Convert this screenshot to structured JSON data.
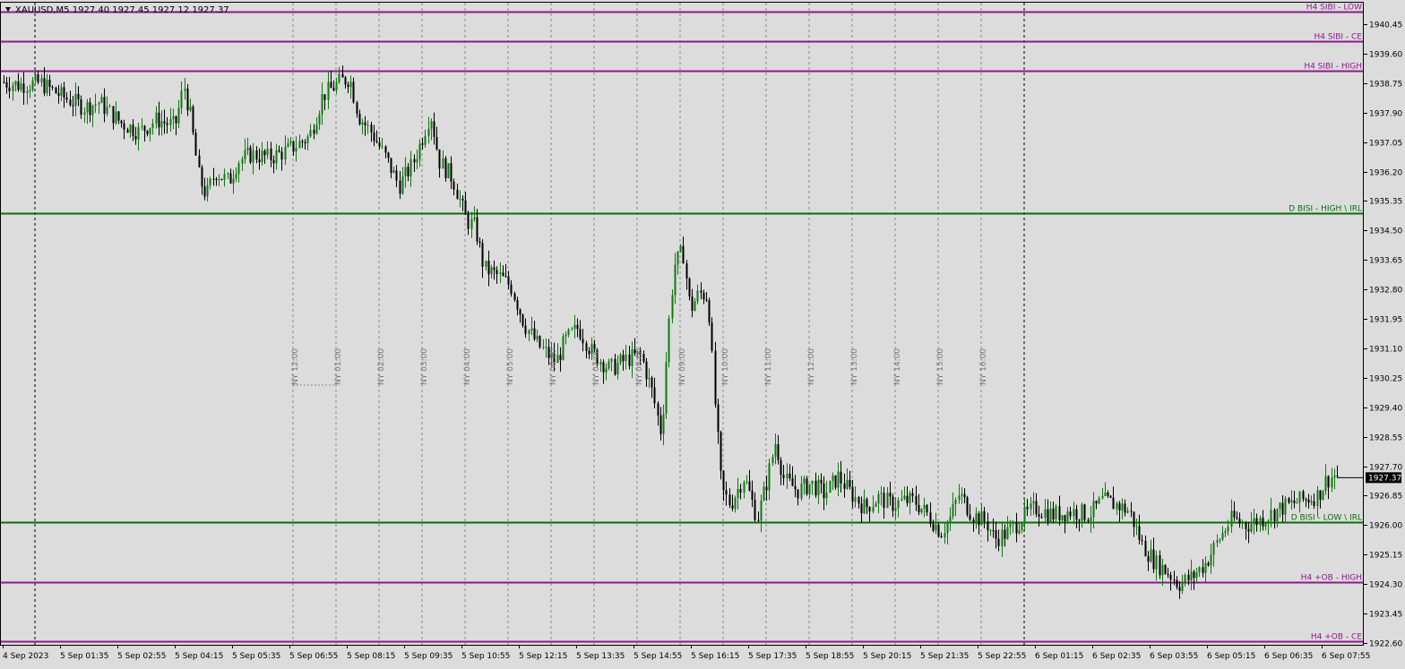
{
  "header": {
    "symbol_line": "XAUUSD,M5  1927.40 1927.45 1927.12 1927.37",
    "collapse_icon": "triangle-down-icon"
  },
  "colors": {
    "background": "#dcdcdc",
    "bull_candle": "#0f7a0f",
    "bear_candle": "#000000",
    "purple_level": "#8b1a8b",
    "green_level": "#0a6e0a",
    "session_line": "#8a8a8a",
    "price_tag_bg": "#000000",
    "price_tag_fg": "#ffffff"
  },
  "chart_data": {
    "type": "candlestick",
    "ylim": [
      1922.6,
      1940.9
    ],
    "y_ticks": [
      "1940.45",
      "1939.60",
      "1938.75",
      "1937.90",
      "1937.05",
      "1936.20",
      "1935.35",
      "1934.50",
      "1933.65",
      "1932.80",
      "1931.95",
      "1931.10",
      "1930.25",
      "1929.40",
      "1928.55",
      "1927.70",
      "1926.85",
      "1926.00",
      "1925.15",
      "1924.30",
      "1923.45",
      "1922.60"
    ],
    "x_ticks": [
      "4 Sep 2023",
      "5 Sep 01:35",
      "5 Sep 02:55",
      "5 Sep 04:15",
      "5 Sep 05:35",
      "5 Sep 06:55",
      "5 Sep 08:15",
      "5 Sep 09:35",
      "5 Sep 10:55",
      "5 Sep 12:15",
      "5 Sep 13:35",
      "5 Sep 14:55",
      "5 Sep 16:15",
      "5 Sep 17:35",
      "5 Sep 18:55",
      "5 Sep 20:15",
      "5 Sep 21:35",
      "5 Sep 22:55",
      "6 Sep 01:15",
      "6 Sep 02:35",
      "6 Sep 03:55",
      "6 Sep 05:15",
      "6 Sep 06:35",
      "6 Sep 07:55"
    ],
    "current_price": "1927.37",
    "levels": [
      {
        "label": "H4 SIBI - LOW",
        "price": 1940.8,
        "color": "#8b1a8b"
      },
      {
        "label": "H4 SIBI - CE",
        "price": 1939.95,
        "color": "#8b1a8b"
      },
      {
        "label": "H4 SIBI - HIGH",
        "price": 1939.1,
        "color": "#8b1a8b"
      },
      {
        "label": "D BISI - HIGH \\ IRL",
        "price": 1935.0,
        "color": "#0a6e0a"
      },
      {
        "label": "D BISI - LOW \\ IRL",
        "price": 1926.1,
        "color": "#0a6e0a"
      },
      {
        "label": "H4 +OB - HIGH",
        "price": 1924.35,
        "color": "#8b1a8b"
      },
      {
        "label": "H4 +OB - CE",
        "price": 1922.65,
        "color": "#8b1a8b"
      }
    ],
    "sessions": [
      "NY 12:00",
      "NY 01:00",
      "NY 02:00",
      "NY 03:00",
      "NY 04:00",
      "NY 05:00",
      "NY 06:00",
      "NY 07:00",
      "NY 08:00",
      "NY 09:00",
      "NY 10:00",
      "NY 11:00",
      "NY 12:00",
      "NY 13:00",
      "NY 14:00",
      "NY 15:00",
      "NY 16:00"
    ],
    "price_path": [
      [
        0,
        1938.8
      ],
      [
        20,
        1938.7
      ],
      [
        45,
        1938.75
      ],
      [
        70,
        1938.35
      ],
      [
        95,
        1938.05
      ],
      [
        110,
        1938.2
      ],
      [
        135,
        1937.6
      ],
      [
        155,
        1937.35
      ],
      [
        175,
        1937.7
      ],
      [
        195,
        1937.5
      ],
      [
        205,
        1938.7
      ],
      [
        212,
        1937.8
      ],
      [
        222,
        1936.0
      ],
      [
        230,
        1935.5
      ],
      [
        240,
        1936.2
      ],
      [
        255,
        1935.9
      ],
      [
        265,
        1936.5
      ],
      [
        280,
        1936.7
      ],
      [
        300,
        1936.6
      ],
      [
        320,
        1936.8
      ],
      [
        345,
        1937.2
      ],
      [
        360,
        1938.4
      ],
      [
        380,
        1938.8
      ],
      [
        390,
        1938.9
      ],
      [
        400,
        1937.8
      ],
      [
        415,
        1937.3
      ],
      [
        430,
        1936.6
      ],
      [
        445,
        1935.8
      ],
      [
        460,
        1936.4
      ],
      [
        470,
        1937.1
      ],
      [
        480,
        1937.9
      ],
      [
        490,
        1936.5
      ],
      [
        505,
        1936.0
      ],
      [
        520,
        1934.8
      ],
      [
        530,
        1934.6
      ],
      [
        540,
        1933.4
      ],
      [
        555,
        1933.2
      ],
      [
        570,
        1932.9
      ],
      [
        585,
        1931.8
      ],
      [
        600,
        1931.2
      ],
      [
        620,
        1930.7
      ],
      [
        630,
        1931.3
      ],
      [
        645,
        1931.7
      ],
      [
        660,
        1931.0
      ],
      [
        680,
        1930.5
      ],
      [
        700,
        1930.8
      ],
      [
        715,
        1930.9
      ],
      [
        728,
        1929.8
      ],
      [
        738,
        1928.6
      ],
      [
        745,
        1931.5
      ],
      [
        752,
        1933.5
      ],
      [
        762,
        1933.9
      ],
      [
        770,
        1932.2
      ],
      [
        780,
        1932.7
      ],
      [
        790,
        1932.6
      ],
      [
        797,
        1929.7
      ],
      [
        805,
        1927.0
      ],
      [
        815,
        1926.6
      ],
      [
        830,
        1927.4
      ],
      [
        845,
        1926.2
      ],
      [
        855,
        1927.2
      ],
      [
        865,
        1928.4
      ],
      [
        875,
        1927.3
      ],
      [
        890,
        1927.0
      ],
      [
        905,
        1927.2
      ],
      [
        920,
        1926.9
      ],
      [
        935,
        1927.4
      ],
      [
        950,
        1926.9
      ],
      [
        965,
        1926.5
      ],
      [
        980,
        1926.8
      ],
      [
        995,
        1926.6
      ],
      [
        1010,
        1926.7
      ],
      [
        1020,
        1926.7
      ],
      [
        1035,
        1926.3
      ],
      [
        1050,
        1925.8
      ],
      [
        1060,
        1926.2
      ],
      [
        1070,
        1926.9
      ],
      [
        1085,
        1926.3
      ],
      [
        1100,
        1926.1
      ],
      [
        1110,
        1925.6
      ],
      [
        1125,
        1925.8
      ],
      [
        1140,
        1926.2
      ],
      [
        1155,
        1926.5
      ],
      [
        1175,
        1926.3
      ],
      [
        1195,
        1926.4
      ],
      [
        1215,
        1926.3
      ],
      [
        1230,
        1926.7
      ],
      [
        1245,
        1926.6
      ],
      [
        1260,
        1926.4
      ],
      [
        1275,
        1925.4
      ],
      [
        1290,
        1924.9
      ],
      [
        1305,
        1924.6
      ],
      [
        1315,
        1924.3
      ],
      [
        1330,
        1924.5
      ],
      [
        1345,
        1924.9
      ],
      [
        1360,
        1925.6
      ],
      [
        1375,
        1926.2
      ],
      [
        1390,
        1926.0
      ],
      [
        1410,
        1926.2
      ],
      [
        1430,
        1926.5
      ],
      [
        1450,
        1926.7
      ],
      [
        1470,
        1926.85
      ],
      [
        1480,
        1927.3
      ],
      [
        1490,
        1927.45
      ],
      [
        1495,
        1927.37
      ]
    ]
  }
}
